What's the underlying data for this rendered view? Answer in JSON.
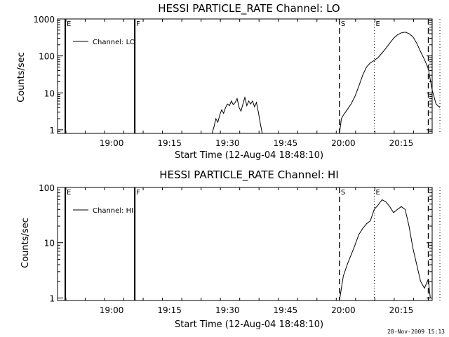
{
  "colors": {
    "background": "#ffffff",
    "foreground": "#000000"
  },
  "footer_timestamp": "28-Nov-2009 15:13",
  "chart_data": [
    {
      "type": "line",
      "title": "HESSI PARTICLE_RATE Channel: LO",
      "xlabel": "Start Time (12-Aug-04 18:48:10)",
      "ylabel": "Counts/sec",
      "yscale": "log",
      "xlim_minutes": [
        -2.17,
        94.83
      ],
      "ylim": [
        0.8,
        1000
      ],
      "x_ticks": [
        "19:00",
        "19:15",
        "19:30",
        "19:45",
        "20:00",
        "20:15"
      ],
      "y_ticks": [
        "1",
        "10",
        "100",
        "1000"
      ],
      "legend": {
        "placement": "top-left",
        "entries": [
          "Channel: LO"
        ]
      },
      "markers": [
        {
          "label": "E",
          "time": "18:48",
          "style": "solid"
        },
        {
          "label": "F",
          "time": "19:06",
          "style": "solid"
        },
        {
          "label": "S",
          "time": "19:59",
          "style": "dashed"
        },
        {
          "label": "E",
          "time": "20:08",
          "style": "dotted"
        },
        {
          "label": "",
          "time": "20:22",
          "style": "dashed"
        },
        {
          "label": "",
          "time": "20:25",
          "style": "dotted"
        }
      ],
      "series": [
        {
          "name": "Channel: LO",
          "segments": [
            [
              [
                "19:26",
                0.8
              ],
              [
                "19:26.5",
                1.2
              ],
              [
                "19:27",
                2.0
              ],
              [
                "19:27.5",
                1.6
              ],
              [
                "19:28",
                2.5
              ],
              [
                "19:28.5",
                3.5
              ],
              [
                "19:29",
                2.8
              ],
              [
                "19:29.5",
                4.0
              ],
              [
                "19:30",
                5.0
              ],
              [
                "19:30.5",
                4.5
              ],
              [
                "19:31",
                6.0
              ],
              [
                "19:31.5",
                4.8
              ],
              [
                "19:32",
                5.5
              ],
              [
                "19:32.5",
                7.0
              ],
              [
                "19:33",
                4.0
              ],
              [
                "19:33.5",
                3.2
              ],
              [
                "19:34",
                5.0
              ],
              [
                "19:34.5",
                7.5
              ],
              [
                "19:35",
                4.5
              ],
              [
                "19:35.5",
                6.0
              ],
              [
                "19:36",
                5.0
              ],
              [
                "19:36.5",
                6.0
              ],
              [
                "19:37",
                4.2
              ],
              [
                "19:37.5",
                5.5
              ],
              [
                "19:38",
                3.0
              ],
              [
                "19:38.5",
                1.5
              ],
              [
                "19:39",
                0.8
              ]
            ],
            [
              [
                "19:59",
                0.8
              ],
              [
                "19:59.5",
                2.0
              ],
              [
                "20:00",
                2.5
              ],
              [
                "20:01",
                3.5
              ],
              [
                "20:02",
                5.0
              ],
              [
                "20:03",
                8.0
              ],
              [
                "20:04",
                15.0
              ],
              [
                "20:05",
                30.0
              ],
              [
                "20:06",
                50.0
              ],
              [
                "20:07",
                65.0
              ],
              [
                "20:08",
                75.0
              ],
              [
                "20:09",
                90.0
              ],
              [
                "20:10",
                120.0
              ],
              [
                "20:11",
                160.0
              ],
              [
                "20:12",
                220.0
              ],
              [
                "20:13",
                300.0
              ],
              [
                "20:14",
                370.0
              ],
              [
                "20:15",
                420.0
              ],
              [
                "20:16",
                440.0
              ],
              [
                "20:17",
                400.0
              ],
              [
                "20:18",
                330.0
              ],
              [
                "20:19",
                220.0
              ],
              [
                "20:20",
                130.0
              ],
              [
                "20:21",
                80.0
              ],
              [
                "20:22",
                45.0
              ],
              [
                "20:23",
                12.0
              ],
              [
                "20:24",
                5.0
              ],
              [
                "20:25",
                4.0
              ]
            ]
          ]
        }
      ]
    },
    {
      "type": "line",
      "title": "HESSI PARTICLE_RATE Channel: HI",
      "xlabel": "Start Time (12-Aug-04 18:48:10)",
      "ylabel": "Counts/sec",
      "yscale": "log",
      "xlim_minutes": [
        -2.17,
        94.83
      ],
      "ylim": [
        0.9,
        100
      ],
      "x_ticks": [
        "19:00",
        "19:15",
        "19:30",
        "19:45",
        "20:00",
        "20:15"
      ],
      "y_ticks": [
        "1",
        "10",
        "100"
      ],
      "legend": {
        "placement": "top-left",
        "entries": [
          "Channel: HI"
        ]
      },
      "markers": [
        {
          "label": "E",
          "time": "18:48",
          "style": "solid"
        },
        {
          "label": "F",
          "time": "19:06",
          "style": "solid"
        },
        {
          "label": "S",
          "time": "19:59",
          "style": "dashed"
        },
        {
          "label": "E",
          "time": "20:08",
          "style": "dotted"
        },
        {
          "label": "",
          "time": "20:22",
          "style": "dashed"
        },
        {
          "label": "",
          "time": "20:25",
          "style": "dotted"
        }
      ],
      "series": [
        {
          "name": "Channel: HI",
          "segments": [
            [
              [
                "19:59",
                0.9
              ],
              [
                "19:59.5",
                1.5
              ],
              [
                "20:00",
                2.5
              ],
              [
                "20:01",
                4.0
              ],
              [
                "20:02",
                6.0
              ],
              [
                "20:03",
                9.0
              ],
              [
                "20:04",
                14.0
              ],
              [
                "20:05",
                18.0
              ],
              [
                "20:06",
                22.0
              ],
              [
                "20:07",
                25.0
              ],
              [
                "20:08",
                40.0
              ],
              [
                "20:09",
                48.0
              ],
              [
                "20:10",
                60.0
              ],
              [
                "20:11",
                55.0
              ],
              [
                "20:12",
                45.0
              ],
              [
                "20:13",
                35.0
              ],
              [
                "20:14",
                40.0
              ],
              [
                "20:15",
                45.0
              ],
              [
                "20:16",
                40.0
              ],
              [
                "20:17",
                20.0
              ],
              [
                "20:18",
                8.0
              ],
              [
                "20:19",
                4.0
              ],
              [
                "20:20",
                2.0
              ],
              [
                "20:21",
                1.5
              ],
              [
                "20:22",
                2.2
              ],
              [
                "20:22.5",
                1.0
              ]
            ]
          ]
        }
      ]
    }
  ]
}
